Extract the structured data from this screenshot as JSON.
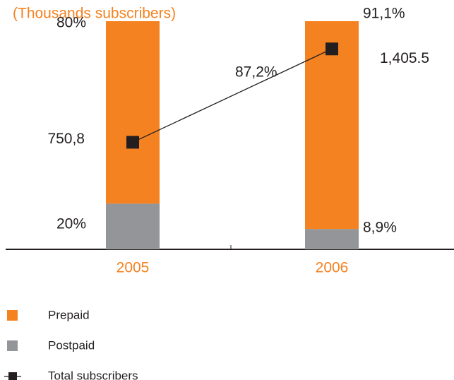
{
  "chart_data": {
    "type": "bar",
    "title": "(Thousands subscribers)",
    "categories": [
      "2005",
      "2006"
    ],
    "series": [
      {
        "name": "Prepaid",
        "color": "#f58220",
        "values": [
          80,
          91.1
        ],
        "value_labels": [
          "80%",
          "91,1%"
        ]
      },
      {
        "name": "Postpaid",
        "color": "#939598",
        "values": [
          20,
          8.9
        ],
        "value_labels": [
          "20%",
          "8,9%"
        ]
      },
      {
        "name": "Total subscribers",
        "color": "#231f20",
        "type": "line",
        "axis": "y2",
        "values": [
          750.8,
          1405.5
        ],
        "value_labels": [
          "750,8",
          "1,405.5"
        ]
      }
    ],
    "stacked": true,
    "ylim": [
      0,
      100
    ],
    "y2lim": [
      0,
      1600
    ],
    "annotations": [
      "87,2%"
    ]
  }
}
